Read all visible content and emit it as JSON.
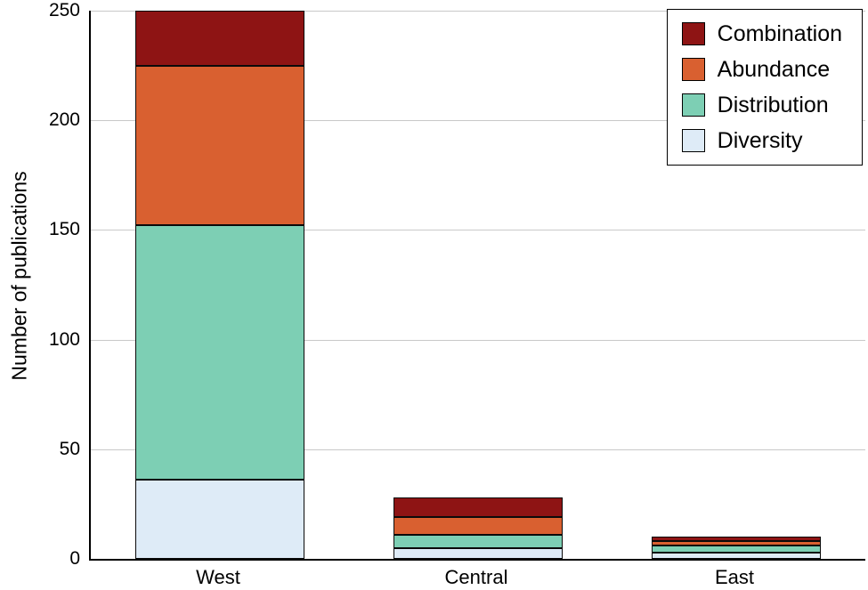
{
  "chart_data": {
    "type": "bar",
    "stacked": true,
    "title": "",
    "xlabel": "",
    "ylabel": "Number of publications",
    "ylim": [
      0,
      250
    ],
    "yticks": [
      0,
      50,
      100,
      150,
      200,
      250
    ],
    "grid": true,
    "legend_position": "top-right",
    "categories": [
      "West",
      "Central",
      "East"
    ],
    "series": [
      {
        "name": "Diversity",
        "color": "#DEEBF7",
        "values": [
          36,
          5,
          3
        ]
      },
      {
        "name": "Distribution",
        "color": "#7DCFB4",
        "values": [
          116,
          6,
          3
        ]
      },
      {
        "name": "Abundance",
        "color": "#D96030",
        "values": [
          73,
          8,
          2
        ]
      },
      {
        "name": "Combination",
        "color": "#8E1414",
        "values": [
          25,
          9,
          2
        ]
      }
    ],
    "legend_order": [
      "Combination",
      "Abundance",
      "Distribution",
      "Diversity"
    ]
  }
}
